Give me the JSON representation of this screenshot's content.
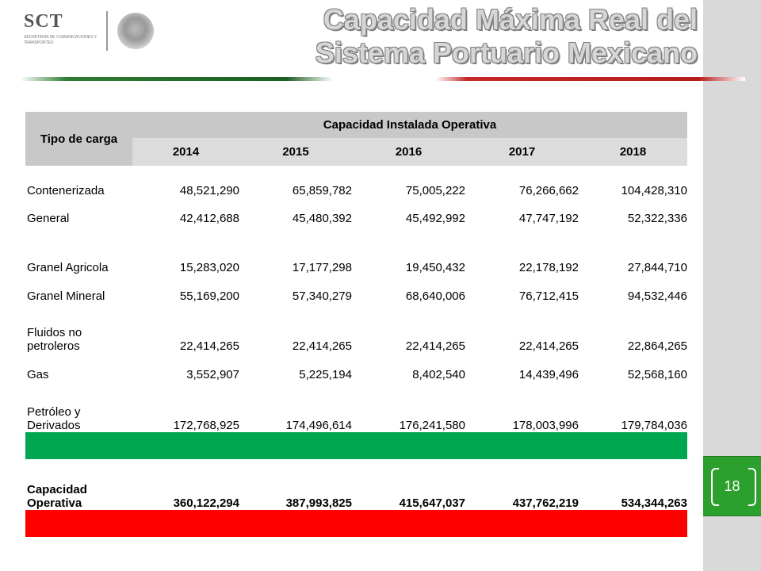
{
  "header": {
    "title_line1": "Capacidad Máxima Real del",
    "title_line2": "Sistema Portuario Mexicano",
    "logo_text": "SCT",
    "logo_subtext": "SECRETARÍA DE COMUNICACIONES Y TRANSPORTES"
  },
  "table": {
    "type_header": "Tipo de carga",
    "group_header": "Capacidad Instalada Operativa",
    "years": [
      "2014",
      "2015",
      "2016",
      "2017",
      "2018"
    ],
    "rows": [
      {
        "label": "Contenerizada",
        "values": [
          "48,521,290",
          "65,859,782",
          "75,005,222",
          "76,266,662",
          "104,428,310"
        ]
      },
      {
        "label": "General",
        "values": [
          "42,412,688",
          "45,480,392",
          "45,492,992",
          "47,747,192",
          "52,322,336"
        ]
      },
      {
        "label": "Granel Agricola",
        "values": [
          "15,283,020",
          "17,177,298",
          "19,450,432",
          "22,178,192",
          "27,844,710"
        ]
      },
      {
        "label": "Granel Mineral",
        "values": [
          "55,169,200",
          "57,340,279",
          "68,640,006",
          "76,712,415",
          "94,532,446"
        ]
      },
      {
        "label": "Fluidos no petroleros",
        "values": [
          "22,414,265",
          "22,414,265",
          "22,414,265",
          "22,414,265",
          "22,864,265"
        ]
      },
      {
        "label": "Gas",
        "values": [
          "3,552,907",
          "5,225,194",
          "8,402,540",
          "14,439,496",
          "52,568,160"
        ]
      },
      {
        "label": "Petróleo y Derivados",
        "values": [
          "172,768,925",
          "174,496,614",
          "176,241,580",
          "178,003,996",
          "179,784,036"
        ]
      }
    ],
    "total": {
      "label": "Capacidad Operativa",
      "values": [
        "360,122,294",
        "387,993,825",
        "415,647,037",
        "437,762,219",
        "534,344,263"
      ]
    }
  },
  "slide": {
    "page_number": "18"
  },
  "colors": {
    "green_band": "#00a650",
    "red_band": "#ff0000",
    "header_gray": "#c8c8c8"
  }
}
